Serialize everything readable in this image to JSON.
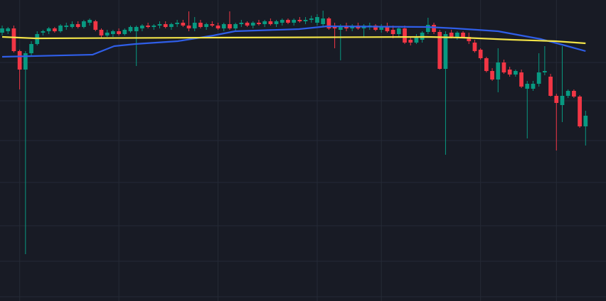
{
  "chart_data": {
    "type": "candlestick",
    "up_color": "#089981",
    "down_color": "#f23645",
    "background": "#181b25",
    "grid_color": "#252a36",
    "grid": true,
    "xlim": [
      -0.37,
      103.5
    ],
    "ylim": [
      0,
      424
    ],
    "xticks": [
      3,
      20,
      37,
      54,
      65,
      82,
      95
    ],
    "yticks": [
      6,
      56,
      106,
      167,
      226,
      282,
      336
    ],
    "candles": [
      [
        378,
        388,
        374,
        384
      ],
      [
        380,
        386,
        376,
        384
      ],
      [
        384,
        388,
        350,
        352
      ],
      [
        352,
        354,
        298,
        326
      ],
      [
        326,
        352,
        66,
        349
      ],
      [
        349,
        366,
        344,
        362
      ],
      [
        362,
        380,
        360,
        376
      ],
      [
        378,
        382,
        374,
        380
      ],
      [
        380,
        386,
        376,
        384
      ],
      [
        384,
        386,
        378,
        380
      ],
      [
        380,
        390,
        378,
        388
      ],
      [
        386,
        392,
        382,
        388
      ],
      [
        386,
        394,
        384,
        390
      ],
      [
        390,
        394,
        384,
        386
      ],
      [
        386,
        396,
        384,
        394
      ],
      [
        392,
        398,
        388,
        396
      ],
      [
        394,
        396,
        380,
        382
      ],
      [
        382,
        384,
        370,
        374
      ],
      [
        374,
        382,
        372,
        378
      ],
      [
        376,
        382,
        372,
        380
      ],
      [
        380,
        384,
        374,
        376
      ],
      [
        376,
        384,
        374,
        382
      ],
      [
        380,
        388,
        378,
        386
      ],
      [
        380,
        388,
        331,
        386
      ],
      [
        384,
        390,
        380,
        388
      ],
      [
        388,
        392,
        384,
        386
      ],
      [
        386,
        390,
        382,
        388
      ],
      [
        388,
        394,
        384,
        390
      ],
      [
        390,
        394,
        384,
        386
      ],
      [
        386,
        392,
        382,
        390
      ],
      [
        390,
        396,
        386,
        392
      ],
      [
        392,
        396,
        386,
        388
      ],
      [
        388,
        408,
        380,
        384
      ],
      [
        384,
        400,
        380,
        392
      ],
      [
        392,
        396,
        384,
        386
      ],
      [
        386,
        392,
        382,
        390
      ],
      [
        390,
        394,
        386,
        388
      ],
      [
        388,
        392,
        382,
        384
      ],
      [
        384,
        392,
        380,
        390
      ],
      [
        390,
        408,
        382,
        384
      ],
      [
        384,
        392,
        380,
        390
      ],
      [
        390,
        396,
        386,
        392
      ],
      [
        392,
        394,
        386,
        388
      ],
      [
        388,
        394,
        384,
        392
      ],
      [
        392,
        396,
        388,
        390
      ],
      [
        390,
        396,
        386,
        394
      ],
      [
        394,
        398,
        388,
        390
      ],
      [
        390,
        396,
        386,
        394
      ],
      [
        392,
        398,
        388,
        396
      ],
      [
        396,
        398,
        390,
        392
      ],
      [
        392,
        398,
        388,
        396
      ],
      [
        396,
        400,
        392,
        394
      ],
      [
        394,
        400,
        390,
        396
      ],
      [
        396,
        402,
        392,
        398
      ],
      [
        392,
        404,
        388,
        400
      ],
      [
        390,
        409,
        386,
        398
      ],
      [
        398,
        400,
        382,
        384
      ],
      [
        388,
        392,
        356,
        384
      ],
      [
        382,
        390,
        339,
        386
      ],
      [
        388,
        392,
        380,
        384
      ],
      [
        384,
        390,
        380,
        388
      ],
      [
        388,
        392,
        382,
        384
      ],
      [
        384,
        390,
        372,
        388
      ],
      [
        386,
        392,
        382,
        388
      ],
      [
        388,
        390,
        380,
        382
      ],
      [
        382,
        390,
        378,
        386
      ],
      [
        386,
        392,
        378,
        380
      ],
      [
        382,
        388,
        370,
        376
      ],
      [
        376,
        386,
        372,
        384
      ],
      [
        384,
        388,
        362,
        364
      ],
      [
        368,
        372,
        360,
        364
      ],
      [
        364,
        376,
        362,
        372
      ],
      [
        368,
        380,
        364,
        378
      ],
      [
        379,
        399,
        376,
        389
      ],
      [
        389,
        392,
        376,
        379
      ],
      [
        379,
        382,
        326,
        327
      ],
      [
        327,
        380,
        206,
        376
      ],
      [
        378,
        382,
        370,
        372
      ],
      [
        372,
        380,
        368,
        378
      ],
      [
        378,
        380,
        370,
        372
      ],
      [
        372,
        378,
        362,
        366
      ],
      [
        364,
        368,
        350,
        352
      ],
      [
        354,
        356,
        340,
        342
      ],
      [
        342,
        344,
        322,
        324
      ],
      [
        324,
        328,
        310,
        312
      ],
      [
        312,
        356,
        294,
        336
      ],
      [
        336,
        340,
        320,
        322
      ],
      [
        326,
        330,
        316,
        319
      ],
      [
        319,
        326,
        316,
        324
      ],
      [
        322,
        326,
        300,
        302
      ],
      [
        299,
        310,
        229,
        306
      ],
      [
        299,
        310,
        296,
        306
      ],
      [
        306,
        349,
        302,
        322
      ],
      [
        322,
        359,
        318,
        324
      ],
      [
        316,
        320,
        288,
        289
      ],
      [
        289,
        292,
        212,
        279
      ],
      [
        276,
        359,
        252,
        289
      ],
      [
        289,
        298,
        286,
        296
      ],
      [
        296,
        298,
        286,
        288
      ],
      [
        288,
        290,
        244,
        246
      ],
      [
        246,
        268,
        219,
        261
      ]
    ],
    "lines": [
      {
        "color": "#2f5ee8",
        "x": [
          0,
          15.5,
          19.2,
          22.8,
          30.1,
          36.2,
          39.9,
          50.9,
          55.7,
          72.8,
          77.7,
          85,
          92.3,
          96,
          100
        ],
        "values": [
          344,
          347,
          359,
          362,
          366,
          374,
          380,
          383,
          387,
          386,
          384,
          380,
          369,
          361,
          352
        ]
      },
      {
        "color": "#f2e348",
        "x": [
          0,
          5.7,
          36.2,
          72.8,
          78.9,
          87.4,
          94.8,
          100
        ],
        "values": [
          372,
          370,
          371,
          372,
          371,
          368,
          366,
          363
        ]
      }
    ]
  }
}
